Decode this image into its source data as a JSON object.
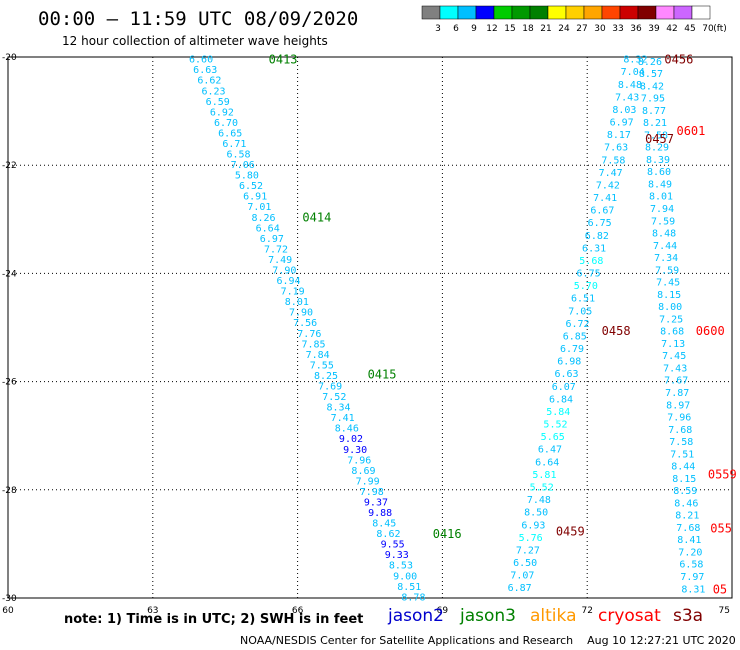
{
  "title": "00:00 – 11:59 UTC 08/09/2020",
  "subtitle": "12 hour collection of altimeter wave heights",
  "colorbar": {
    "labels": [
      "3",
      "6",
      "9",
      "12",
      "15",
      "18",
      "21",
      "24",
      "27",
      "30",
      "33",
      "36",
      "39",
      "42",
      "45",
      "70"
    ],
    "unit": "(ft)",
    "colors": [
      "#808080",
      "#00ffff",
      "#00bfff",
      "#0000ff",
      "#00cc00",
      "#009900",
      "#008000",
      "#ffff00",
      "#ffd000",
      "#ffa500",
      "#ff4500",
      "#cc0000",
      "#800000",
      "#ff88ff",
      "#cc66ff",
      "#ffffff"
    ]
  },
  "axes": {
    "lon_ticks": [
      "60",
      "63",
      "66",
      "69",
      "72",
      "75"
    ],
    "lat_ticks": [
      "-20",
      "-22",
      "-24",
      "-26",
      "-28",
      "-30"
    ]
  },
  "passes": [
    {
      "id": "0413",
      "color": "#008000",
      "label": {
        "lon": 65.4,
        "lat": -20.03
      }
    },
    {
      "id": "0414",
      "color": "#008000",
      "label": {
        "lon": 66.1,
        "lat": -22.95
      }
    },
    {
      "id": "0415",
      "color": "#008000",
      "label": {
        "lon": 67.45,
        "lat": -25.85
      }
    },
    {
      "id": "0416",
      "color": "#008000",
      "label": {
        "lon": 68.8,
        "lat": -28.8
      }
    },
    {
      "id": "0456",
      "color": "#800000",
      "label": {
        "lon": 73.6,
        "lat": -20.03
      }
    },
    {
      "id": "0457",
      "color": "#800000",
      "label": {
        "lon": 73.2,
        "lat": -21.5
      }
    },
    {
      "id": "0458",
      "color": "#800000",
      "label": {
        "lon": 72.3,
        "lat": -25.05
      }
    },
    {
      "id": "0459",
      "color": "#800000",
      "label": {
        "lon": 71.35,
        "lat": -28.75
      }
    },
    {
      "id": "0601",
      "color": "#ff0000",
      "label": {
        "lon": 73.85,
        "lat": -21.35
      }
    },
    {
      "id": "0600",
      "color": "#ff0000",
      "label": {
        "lon": 74.25,
        "lat": -25.05
      }
    },
    {
      "id": "0559",
      "color": "#ff0000",
      "label": {
        "lon": 74.5,
        "lat": -27.7
      }
    },
    {
      "id": "055",
      "color": "#ff0000",
      "label": {
        "lon": 74.55,
        "lat": -28.7
      }
    },
    {
      "id": "05",
      "color": "#ff0000",
      "label": {
        "lon": 74.6,
        "lat": -29.82
      }
    }
  ],
  "tracks": [
    {
      "name": "0413-0416",
      "color": "#00bfff",
      "start": {
        "lon": 64.0,
        "lat": -20.03
      },
      "end": {
        "lon": 68.4,
        "lat": -29.97
      },
      "values": [
        "6.60",
        "6.63",
        "6.62",
        "6.23",
        "6.59",
        "6.92",
        "6.70",
        "6.65",
        "6.71",
        "6.58",
        "7.06",
        "5.80",
        "6.52",
        "6.91",
        "7.01",
        "8.26",
        "6.64",
        "6.97",
        "7.72",
        "7.49",
        "7.90",
        "6.94",
        "7.19",
        "8.01",
        "7.90",
        "7.56",
        "7.76",
        "7.85",
        "7.84",
        "7.55",
        "8.25",
        "7.69",
        "7.52",
        "8.34",
        "7.41",
        "8.46",
        "9.02",
        "9.30",
        "7.96",
        "8.69",
        "7.99",
        "7.98",
        "9.37",
        "9.88",
        "8.45",
        "8.62",
        "9.55",
        "9.33",
        "8.53",
        "9.00",
        "8.51",
        "8.78"
      ],
      "colors": {
        "9.02": "#0000ff",
        "9.30": "#0000ff",
        "9.37": "#0000ff",
        "9.88": "#0000ff",
        "9.55": "#0000ff",
        "9.33": "#0000ff"
      }
    },
    {
      "name": "0456-0459",
      "color": "#00bfff",
      "start": {
        "lon": 73.0,
        "lat": -20.03
      },
      "end": {
        "lon": 70.6,
        "lat": -29.8
      },
      "values": [
        "8.32",
        "7.04",
        "8.48",
        "7.43",
        "8.03",
        "6.97",
        "8.17",
        "7.63",
        "7.58",
        "7.47",
        "7.42",
        "7.41",
        "6.67",
        "6.75",
        "6.82",
        "6.31",
        "5.68",
        "6.75",
        "5.70",
        "6.51",
        "7.05",
        "6.72",
        "6.85",
        "6.79",
        "6.98",
        "6.63",
        "6.07",
        "6.84",
        "5.84",
        "5.52",
        "5.65",
        "6.47",
        "6.64",
        "5.81",
        "5.52",
        "7.48",
        "8.50",
        "6.93",
        "5.76",
        "7.27",
        "6.50",
        "7.07",
        "6.87"
      ],
      "colors": {
        "5.68": "#00ffff",
        "5.70": "#00ffff",
        "5.84": "#00ffff",
        "5.52": "#00ffff",
        "5.65": "#00ffff",
        "5.81": "#00ffff",
        "5.76": "#00ffff"
      }
    },
    {
      "name": "0601-0559",
      "color": "#00bfff",
      "start": {
        "lon": 73.3,
        "lat": -20.07
      },
      "end": {
        "lon": 74.2,
        "lat": -29.82
      },
      "values": [
        "8.26",
        "8.57",
        "8.42",
        "7.95",
        "8.77",
        "8.21",
        "7.58",
        "8.29",
        "8.39",
        "8.60",
        "8.49",
        "8.01",
        "7.94",
        "7.59",
        "8.48",
        "7.44",
        "7.34",
        "7.59",
        "7.45",
        "8.15",
        "8.00",
        "7.25",
        "8.68",
        "7.13",
        "7.45",
        "7.43",
        "7.67",
        "7.87",
        "8.97",
        "7.96",
        "7.68",
        "7.58",
        "7.51",
        "8.44",
        "8.15",
        "8.59",
        "8.46",
        "8.21",
        "7.68",
        "8.41",
        "7.20",
        "6.58",
        "7.97",
        "8.31"
      ],
      "colors": {}
    }
  ],
  "note": "note: 1) Time is in UTC; 2) SWH is in feet",
  "satellites": [
    {
      "name": "jason2",
      "color": "#0000cc"
    },
    {
      "name": "jason3",
      "color": "#008000"
    },
    {
      "name": "altika",
      "color": "#ff9900"
    },
    {
      "name": "cryosat",
      "color": "#ff0000"
    },
    {
      "name": "s3a",
      "color": "#800000"
    }
  ],
  "credit": "NOAA/NESDIS Center for Satellite Applications and Research    Aug 10 12:27:21 UTC 2020"
}
